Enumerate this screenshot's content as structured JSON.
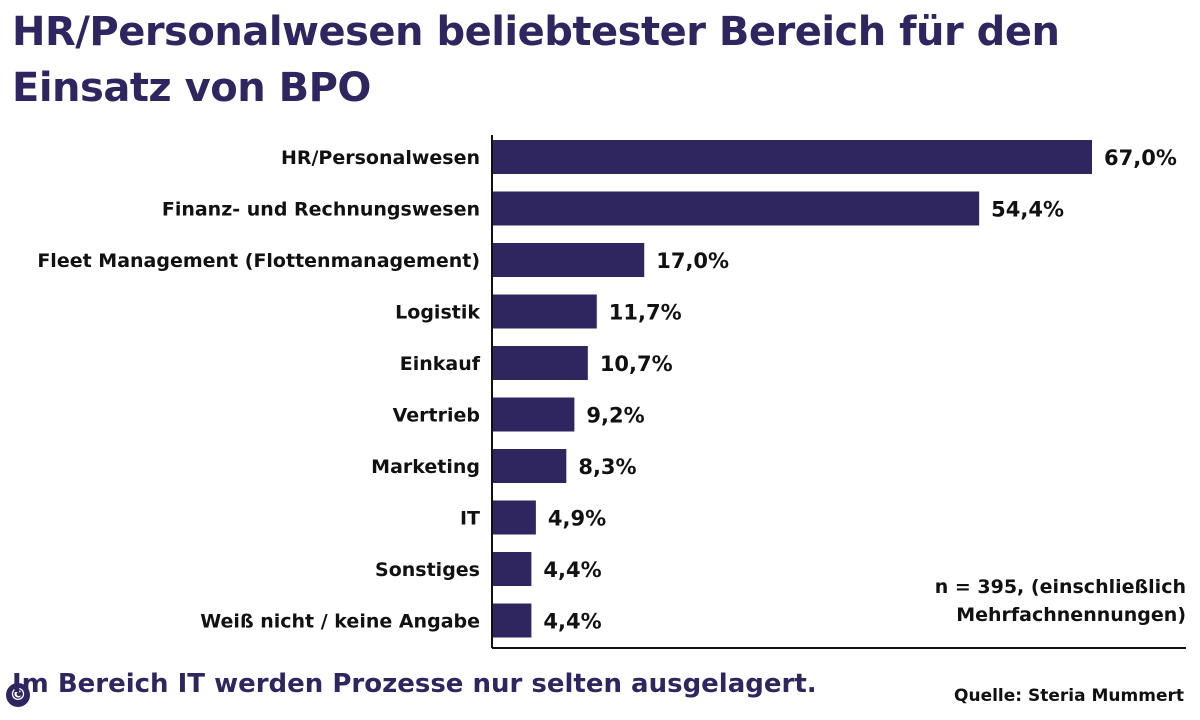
{
  "chart_data": {
    "type": "bar",
    "orientation": "horizontal",
    "title": "HR/Personalwesen beliebtester Bereich für den Einsatz von BPO",
    "categories": [
      "HR/Personalwesen",
      "Finanz- und Rechnungswesen",
      "Fleet Management (Flottenmanagement)",
      "Logistik",
      "Einkauf",
      "Vertrieb",
      "Marketing",
      "IT",
      "Sonstiges",
      "Weiß nicht / keine Angabe"
    ],
    "values": [
      67.0,
      54.4,
      17.0,
      11.7,
      10.7,
      9.2,
      8.3,
      4.9,
      4.4,
      4.4
    ],
    "value_labels": [
      "67,0%",
      "54,4%",
      "17,0%",
      "11,7%",
      "10,7%",
      "9,2%",
      "8,3%",
      "4,9%",
      "4,4%",
      "4,4%"
    ],
    "xlim": [
      0,
      67.0
    ],
    "bar_color": "#2f2660",
    "grid": false,
    "note_lines": [
      "n = 395, (einschließlich",
      "Mehrfachnennungen)"
    ]
  },
  "footer": {
    "copyright_symbol": "©",
    "text": "Im Bereich IT werden Prozesse nur selten ausgelagert.",
    "source": "Quelle: Steria Mummert"
  }
}
